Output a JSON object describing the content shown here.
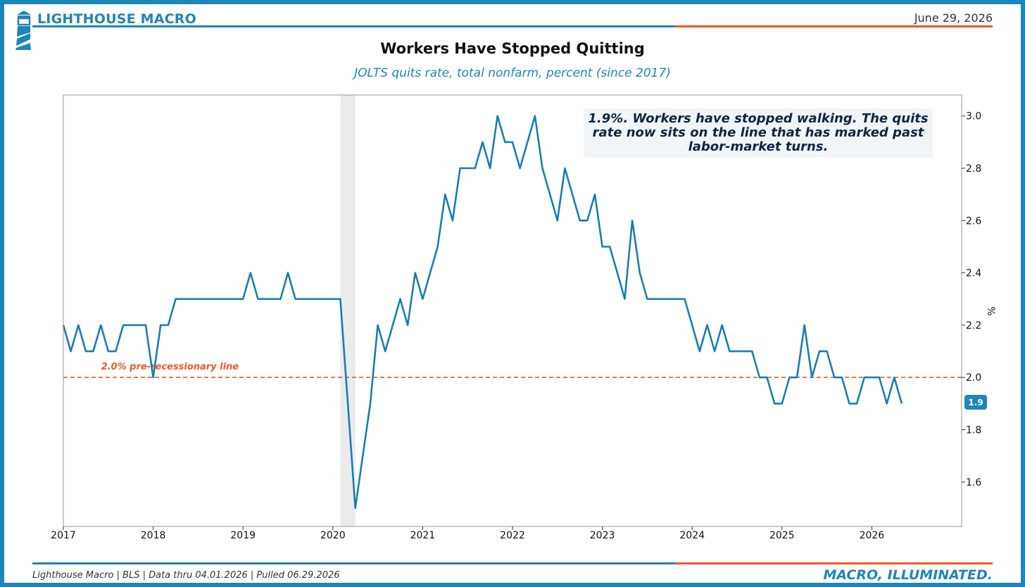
{
  "header": {
    "brand": "LIGHTHOUSE MACRO",
    "date": "June 29, 2026"
  },
  "title": "Workers Have Stopped Quitting",
  "subtitle": "JOLTS quits rate, total nonfarm, percent (since 2017)",
  "annotation": "1.9%. Workers have stopped walking. The quits rate now sits on the line that has marked past labor-market turns.",
  "footer": {
    "source": "Lighthouse Macro | BLS | Data thru 04.01.2026 | Pulled 06.29.2026",
    "tagline": "MACRO, ILLUMINATED."
  },
  "colors": {
    "brand_blue": "#1f86b8",
    "accent_orange": "#ee5a24",
    "series": "#1a7eb0",
    "recession_shade": "#ebebeb"
  },
  "icons": {
    "logo": "lighthouse-icon"
  },
  "chart_data": {
    "type": "line",
    "title": "Workers Have Stopped Quitting",
    "subtitle": "JOLTS quits rate, total nonfarm, percent (since 2017)",
    "xlabel": "",
    "ylabel": "%",
    "y_axis_side": "right",
    "xlim": [
      "2017-01",
      "2026-12"
    ],
    "ylim": [
      1.43,
      3.08
    ],
    "x_ticks": [
      "2017",
      "2018",
      "2019",
      "2020",
      "2021",
      "2022",
      "2023",
      "2024",
      "2025",
      "2026"
    ],
    "y_ticks": [
      "1.6",
      "1.8",
      "2.0",
      "2.2",
      "2.4",
      "2.6",
      "2.8",
      "3.0"
    ],
    "grid": false,
    "series": [
      {
        "name": "",
        "start": "2017-01",
        "frequency": "monthly",
        "values": [
          2.2,
          2.1,
          2.2,
          2.1,
          2.1,
          2.2,
          2.1,
          2.1,
          2.2,
          2.2,
          2.2,
          2.2,
          2.0,
          2.2,
          2.2,
          2.3,
          2.3,
          2.3,
          2.3,
          2.3,
          2.3,
          2.3,
          2.3,
          2.3,
          2.3,
          2.4,
          2.3,
          2.3,
          2.3,
          2.3,
          2.4,
          2.3,
          2.3,
          2.3,
          2.3,
          2.3,
          2.3,
          2.3,
          1.9,
          1.5,
          1.7,
          1.9,
          2.2,
          2.1,
          2.2,
          2.3,
          2.2,
          2.4,
          2.3,
          2.4,
          2.5,
          2.7,
          2.6,
          2.8,
          2.8,
          2.8,
          2.9,
          2.8,
          3.0,
          2.9,
          2.9,
          2.8,
          2.9,
          3.0,
          2.8,
          2.7,
          2.6,
          2.8,
          2.7,
          2.6,
          2.6,
          2.7,
          2.5,
          2.5,
          2.4,
          2.3,
          2.6,
          2.4,
          2.3,
          2.3,
          2.3,
          2.3,
          2.3,
          2.3,
          2.2,
          2.1,
          2.2,
          2.1,
          2.2,
          2.1,
          2.1,
          2.1,
          2.1,
          2.0,
          2.0,
          1.9,
          1.9,
          2.0,
          2.0,
          2.2,
          2.0,
          2.1,
          2.1,
          2.0,
          2.0,
          1.9,
          1.9,
          2.0,
          2.0,
          2.0,
          1.9,
          2.0,
          1.9
        ]
      }
    ],
    "reference_line": {
      "y": 2.0,
      "label": "2.0% pre-recessionary line",
      "style": "dashed"
    },
    "recession_band": {
      "start": "2020-02",
      "end": "2020-04"
    },
    "last_value_label": "1.9"
  }
}
